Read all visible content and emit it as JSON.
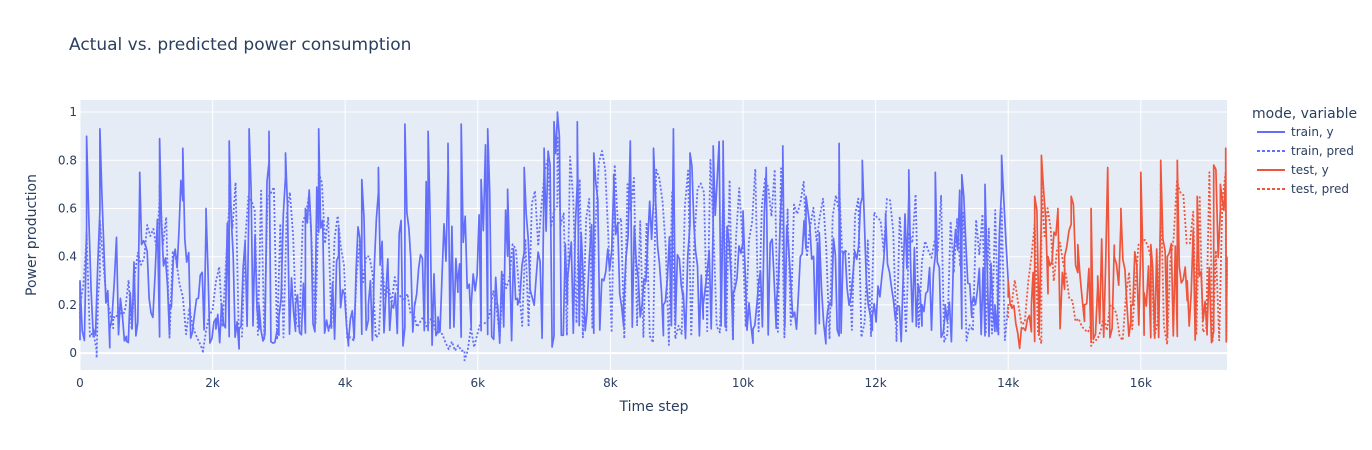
{
  "chart_data": {
    "type": "line",
    "title": "Actual vs. predicted power consumption",
    "xlabel": "Time step",
    "ylabel": "Power production",
    "xlim": [
      0,
      17300
    ],
    "ylim": [
      -0.07,
      1.05
    ],
    "x_ticks": [
      0,
      2000,
      4000,
      6000,
      8000,
      10000,
      12000,
      14000,
      16000
    ],
    "x_tick_labels": [
      "0",
      "2k",
      "4k",
      "6k",
      "8k",
      "10k",
      "12k",
      "14k",
      "16k"
    ],
    "y_ticks": [
      0,
      0.2,
      0.4,
      0.6,
      0.8,
      1
    ],
    "y_tick_labels": [
      "0",
      "0.2",
      "0.4",
      "0.6",
      "0.8",
      "1"
    ],
    "grid": true,
    "legend_title": "mode, variable",
    "legend_position": "right",
    "colors": {
      "train": "#636efa",
      "test": "#ef553b",
      "plot_bg": "#e5ecf6",
      "grid": "#ffffff",
      "text": "#2a3f5f"
    },
    "series": [
      {
        "name": "train, y",
        "mode": "train",
        "variable": "y",
        "dash": "solid",
        "color": "#636efa",
        "x_range": [
          0,
          14000
        ],
        "peaks": [
          [
            0,
            0.3
          ],
          [
            100,
            0.9
          ],
          [
            200,
            0.1
          ],
          [
            300,
            0.93
          ],
          [
            450,
            0.1
          ],
          [
            550,
            0.48
          ],
          [
            700,
            0.05
          ],
          [
            900,
            0.75
          ],
          [
            1100,
            0.15
          ],
          [
            1200,
            0.89
          ],
          [
            1350,
            0.2
          ],
          [
            1550,
            0.85
          ],
          [
            1700,
            0.1
          ],
          [
            1900,
            0.6
          ],
          [
            2050,
            0.1
          ],
          [
            2250,
            0.88
          ],
          [
            2400,
            0.1
          ],
          [
            2550,
            0.93
          ],
          [
            2700,
            0.2
          ],
          [
            2850,
            0.92
          ],
          [
            3000,
            0.15
          ],
          [
            3100,
            0.83
          ],
          [
            3250,
            0.2
          ],
          [
            3400,
            0.6
          ],
          [
            3600,
            0.93
          ],
          [
            3750,
            0.1
          ],
          [
            3900,
            0.52
          ],
          [
            4050,
            0.05
          ],
          [
            4250,
            0.72
          ],
          [
            4350,
            0.2
          ],
          [
            4500,
            0.77
          ],
          [
            4700,
            0.2
          ],
          [
            4900,
            0.95
          ],
          [
            5050,
            0.2
          ],
          [
            5250,
            0.92
          ],
          [
            5400,
            0.15
          ],
          [
            5550,
            0.87
          ],
          [
            5700,
            0.3
          ],
          [
            5750,
            0.95
          ],
          [
            5900,
            0.2
          ],
          [
            6050,
            0.72
          ],
          [
            6150,
            0.93
          ],
          [
            6300,
            0.2
          ],
          [
            6450,
            0.68
          ],
          [
            6600,
            0.2
          ],
          [
            6700,
            0.77
          ],
          [
            6850,
            0.2
          ],
          [
            7000,
            0.85
          ],
          [
            7150,
            0.96
          ],
          [
            7200,
            1.0
          ],
          [
            7350,
            0.3
          ],
          [
            7500,
            0.96
          ],
          [
            7650,
            0.2
          ],
          [
            7750,
            0.83
          ],
          [
            7900,
            0.3
          ],
          [
            8050,
            0.74
          ],
          [
            8200,
            0.2
          ],
          [
            8300,
            0.88
          ],
          [
            8450,
            0.15
          ],
          [
            8650,
            0.85
          ],
          [
            8800,
            0.2
          ],
          [
            8950,
            0.93
          ],
          [
            9100,
            0.25
          ],
          [
            9200,
            0.83
          ],
          [
            9400,
            0.2
          ],
          [
            9550,
            0.86
          ],
          [
            9700,
            0.88
          ],
          [
            9850,
            0.25
          ],
          [
            10000,
            0.59
          ],
          [
            10150,
            0.1
          ],
          [
            10350,
            0.77
          ],
          [
            10500,
            0.2
          ],
          [
            10600,
            0.86
          ],
          [
            10750,
            0.15
          ],
          [
            10950,
            0.65
          ],
          [
            11150,
            0.5
          ],
          [
            11250,
            0.1
          ],
          [
            11450,
            0.87
          ],
          [
            11600,
            0.2
          ],
          [
            11800,
            0.8
          ],
          [
            11950,
            0.15
          ],
          [
            12150,
            0.58
          ],
          [
            12300,
            0.15
          ],
          [
            12500,
            0.76
          ],
          [
            12700,
            0.2
          ],
          [
            12900,
            0.75
          ],
          [
            13050,
            0.2
          ],
          [
            13300,
            0.74
          ],
          [
            13450,
            0.2
          ],
          [
            13650,
            0.7
          ],
          [
            13800,
            0.2
          ],
          [
            13900,
            0.82
          ],
          [
            14000,
            0.3
          ]
        ]
      },
      {
        "name": "train, pred",
        "mode": "train",
        "variable": "pred",
        "dash": "dot",
        "color": "#636efa",
        "x_range": [
          0,
          14000
        ],
        "peaks": [
          [
            0,
            0.2
          ],
          [
            100,
            0.5
          ],
          [
            250,
            -0.02
          ],
          [
            300,
            0.55
          ],
          [
            500,
            0.15
          ],
          [
            1200,
            0.7
          ],
          [
            1850,
            0.0
          ],
          [
            2250,
            0.7
          ],
          [
            3600,
            0.75
          ],
          [
            5800,
            -0.03
          ],
          [
            7200,
            0.9
          ],
          [
            9700,
            0.8
          ],
          [
            11450,
            0.7
          ],
          [
            13900,
            0.6
          ],
          [
            14000,
            0.2
          ]
        ]
      },
      {
        "name": "test, y",
        "mode": "test",
        "variable": "y",
        "dash": "solid",
        "color": "#ef553b",
        "x_range": [
          14000,
          17300
        ],
        "peaks": [
          [
            14000,
            0.3
          ],
          [
            14200,
            0.1
          ],
          [
            14350,
            0.2
          ],
          [
            14400,
            0.65
          ],
          [
            14500,
            0.82
          ],
          [
            14600,
            0.4
          ],
          [
            14750,
            0.6
          ],
          [
            14850,
            0.4
          ],
          [
            14950,
            0.65
          ],
          [
            15050,
            0.45
          ],
          [
            15150,
            0.2
          ],
          [
            15250,
            0.6
          ],
          [
            15350,
            0.32
          ],
          [
            15500,
            0.77
          ],
          [
            15600,
            0.4
          ],
          [
            15700,
            0.6
          ],
          [
            15850,
            0.2
          ],
          [
            16000,
            0.75
          ],
          [
            16050,
            0.25
          ],
          [
            16150,
            0.45
          ],
          [
            16300,
            0.8
          ],
          [
            16400,
            0.4
          ],
          [
            16550,
            0.8
          ],
          [
            16700,
            0.3
          ],
          [
            16850,
            0.65
          ],
          [
            17000,
            0.1
          ],
          [
            17100,
            0.78
          ],
          [
            17200,
            0.7
          ],
          [
            17280,
            0.85
          ],
          [
            17300,
            0.4
          ]
        ]
      },
      {
        "name": "test, pred",
        "mode": "test",
        "variable": "pred",
        "dash": "dot",
        "color": "#ef553b",
        "x_range": [
          14000,
          17300
        ],
        "peaks": [
          [
            14000,
            0.2
          ],
          [
            14500,
            0.7
          ],
          [
            15250,
            0.03
          ],
          [
            16300,
            0.7
          ],
          [
            17280,
            0.75
          ],
          [
            17300,
            0.35
          ]
        ]
      }
    ]
  }
}
